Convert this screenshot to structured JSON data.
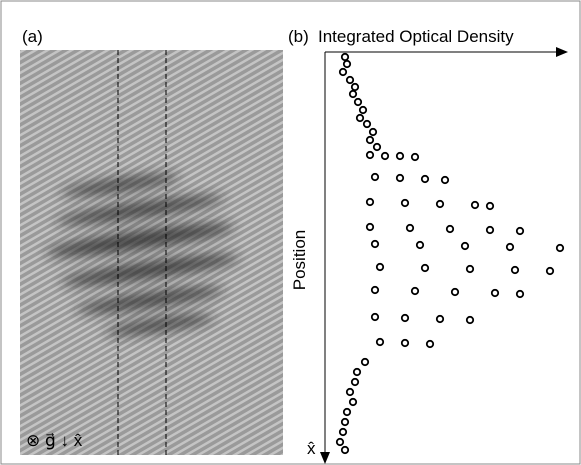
{
  "panel_a": {
    "label": "(a)",
    "annotation": "⊗ g⃗ ↓ x̂"
  },
  "chart_data": {
    "type": "scatter",
    "panel_label": "(b)",
    "title": "Integrated Optical Density",
    "ylabel": "Position",
    "y_axis_symbol": "x̂",
    "color": "#000000",
    "y_inverted": true,
    "xlim": [
      0,
      245
    ],
    "ylim": [
      0,
      400
    ],
    "x": [
      20,
      22,
      18,
      25,
      30,
      28,
      33,
      38,
      35,
      42,
      48,
      45,
      52,
      45,
      60,
      75,
      90,
      50,
      75,
      100,
      120,
      45,
      80,
      115,
      150,
      165,
      45,
      85,
      125,
      165,
      195,
      50,
      95,
      140,
      185,
      235,
      55,
      100,
      145,
      190,
      225,
      50,
      90,
      130,
      170,
      195,
      50,
      80,
      115,
      145,
      55,
      80,
      105,
      40,
      32,
      30,
      25,
      28,
      22,
      20,
      18,
      15,
      20
    ],
    "y": [
      5,
      12,
      20,
      28,
      35,
      42,
      50,
      58,
      66,
      72,
      80,
      88,
      95,
      103,
      104,
      104,
      105,
      125,
      126,
      127,
      128,
      150,
      151,
      152,
      153,
      154,
      175,
      176,
      177,
      178,
      179,
      192,
      193,
      194,
      195,
      196,
      215,
      216,
      217,
      218,
      219,
      238,
      239,
      240,
      241,
      242,
      265,
      266,
      267,
      268,
      290,
      291,
      292,
      310,
      320,
      330,
      340,
      350,
      360,
      370,
      380,
      390,
      398
    ]
  }
}
